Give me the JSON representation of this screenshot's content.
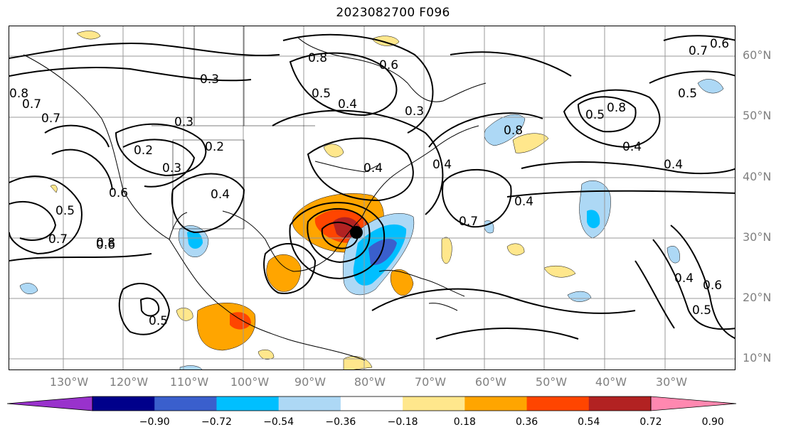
{
  "title": "2023082700 F096",
  "lat_labels": [
    "60°N",
    "50°N",
    "40°N",
    "30°N",
    "20°N",
    "10°N"
  ],
  "lon_labels": [
    "130°W",
    "120°W",
    "110°W",
    "100°W",
    "90°W",
    "80°W",
    "70°W",
    "60°W",
    "50°W",
    "40°W",
    "30°W"
  ],
  "contour_labels": [
    "0.8",
    "0.3",
    "0.5",
    "0.4",
    "0.6",
    "0.3",
    "0.7",
    "0.7",
    "0.6",
    "0.8",
    "0.7",
    "0.3",
    "0.2",
    "0.2",
    "0.3",
    "0.4",
    "0.5",
    "0.6",
    "0.4",
    "0.7",
    "0.8",
    "0.5",
    "0.8",
    "0.4",
    "0.8",
    "0.5",
    "0.4",
    "0.7",
    "0.6",
    "0.4",
    "0.6",
    "0.5",
    "0.4",
    "0.5",
    "0.4"
  ],
  "colorbar": {
    "ticks": [
      "−0.90",
      "−0.72",
      "−0.54",
      "−0.36",
      "−0.18",
      "0.18",
      "0.36",
      "0.54",
      "0.72",
      "0.90"
    ],
    "colors": [
      "#9932cc",
      "#00008b",
      "#3a5fcd",
      "#00bfff",
      "#add8f5",
      "#ffffff",
      "#ffe78c",
      "#ffa500",
      "#ff4500",
      "#b22222",
      "#ff88b0"
    ]
  },
  "storm_marker": "storm-center-dot"
}
